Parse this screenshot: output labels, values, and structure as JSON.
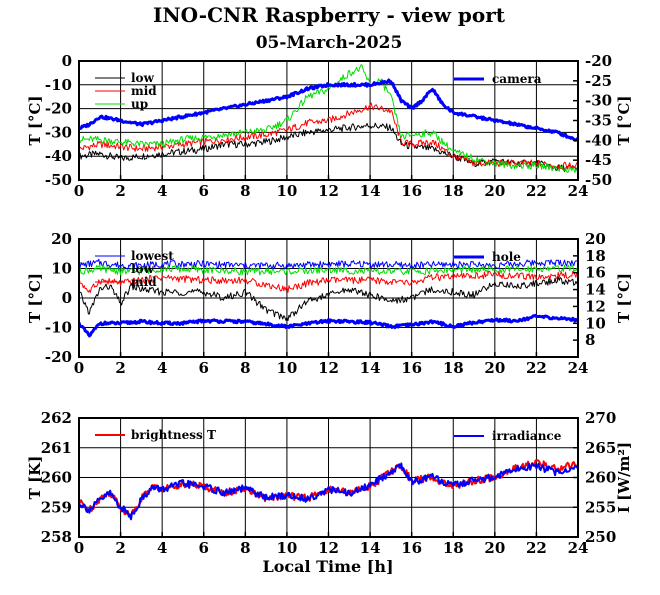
{
  "title": "INO-CNR Raspberry - view port",
  "subtitle": "05-March-2025",
  "xlabel": "Local Time [h]",
  "chart_data": [
    {
      "type": "line",
      "panel": "view-port-temperatures",
      "xlim": [
        0,
        24
      ],
      "ylim_left": [
        -50,
        0
      ],
      "ylim_right": [
        -50,
        -20
      ],
      "ylabel_left": "T [°C]",
      "ylabel_right": "T [°C]",
      "x_ticks": [
        "0",
        "2",
        "4",
        "6",
        "8",
        "10",
        "12",
        "14",
        "16",
        "18",
        "20",
        "22",
        "24"
      ],
      "y_ticks_left": [
        "-50",
        "-40",
        "-30",
        "-20",
        "-10",
        "0"
      ],
      "y_ticks_right": [
        "-50",
        "-45",
        "-40",
        "-35",
        "-30",
        "-25",
        "-20"
      ],
      "grid": true,
      "legend_left_placement": "top-left",
      "legend_right_placement": "top-right",
      "series": [
        {
          "name": "low",
          "axis": "left",
          "color": "#000000",
          "width": 1,
          "x": [
            0,
            1,
            2,
            3,
            4,
            5,
            6,
            7,
            8,
            9,
            10,
            11,
            12,
            13,
            14,
            15,
            15.5,
            16,
            17,
            18,
            19,
            20,
            21,
            22,
            23,
            24
          ],
          "y": [
            -40,
            -39,
            -41,
            -40,
            -39,
            -38,
            -37,
            -35,
            -35,
            -34,
            -32,
            -30,
            -29,
            -28,
            -27,
            -28,
            -35,
            -36,
            -37,
            -40,
            -43,
            -42,
            -43,
            -43,
            -45,
            -45
          ]
        },
        {
          "name": "mid",
          "axis": "left",
          "color": "#ff0000",
          "width": 1,
          "x": [
            0,
            1,
            2,
            3,
            4,
            5,
            6,
            7,
            8,
            9,
            10,
            11,
            12,
            13,
            14,
            15,
            15.5,
            16,
            17,
            18,
            19,
            20,
            21,
            22,
            23,
            24
          ],
          "y": [
            -37,
            -35,
            -36,
            -37,
            -36,
            -35,
            -34,
            -33,
            -32,
            -31,
            -29,
            -26,
            -25,
            -22,
            -19,
            -21,
            -34,
            -35,
            -34,
            -40,
            -43,
            -43,
            -43,
            -43,
            -44,
            -44
          ]
        },
        {
          "name": "up",
          "axis": "left",
          "color": "#00dd00",
          "width": 1,
          "x": [
            0,
            1,
            2,
            3,
            4,
            5,
            6,
            7,
            8,
            9,
            10,
            11,
            12,
            13,
            13.6,
            14,
            14.5,
            15,
            15.5,
            16,
            17,
            18,
            19,
            20,
            21,
            22,
            23,
            24
          ],
          "y": [
            -33,
            -33,
            -34,
            -35,
            -35,
            -33,
            -32,
            -31,
            -30,
            -29,
            -25,
            -15,
            -12,
            -5,
            -3,
            -10,
            -8,
            -15,
            -32,
            -31,
            -30,
            -38,
            -41,
            -43,
            -44,
            -44,
            -45,
            -46
          ]
        },
        {
          "name": "camera",
          "axis": "right",
          "color": "#0000ff",
          "width": 3,
          "x": [
            0,
            0.5,
            1,
            2,
            3,
            4,
            5,
            6,
            7,
            8,
            9,
            10,
            11,
            12,
            13,
            14,
            15,
            15.5,
            16,
            16.5,
            17,
            17.5,
            18,
            19,
            20,
            21,
            22,
            23,
            24
          ],
          "y": [
            -37,
            -36,
            -34,
            -35,
            -36,
            -35,
            -34,
            -33,
            -32,
            -31,
            -30,
            -29,
            -27,
            -26,
            -26,
            -26,
            -25,
            -30,
            -32,
            -30,
            -27,
            -31,
            -33,
            -34,
            -35,
            -36,
            -37,
            -38,
            -40
          ]
        }
      ]
    },
    {
      "type": "line",
      "panel": "tank-temperatures",
      "xlim": [
        0,
        24
      ],
      "ylim_left": [
        -20,
        20
      ],
      "ylim_right": [
        6,
        20
      ],
      "ylabel_left": "T [°C]",
      "ylabel_right": "T [°C]",
      "x_ticks": [
        "0",
        "2",
        "4",
        "6",
        "8",
        "10",
        "12",
        "14",
        "16",
        "18",
        "20",
        "22",
        "24"
      ],
      "y_ticks_left": [
        "-20",
        "-10",
        "0",
        "10",
        "20"
      ],
      "y_ticks_right": [
        "8",
        "10",
        "12",
        "14",
        "16",
        "18",
        "20"
      ],
      "grid": true,
      "legend_left_placement": "top-left",
      "legend_right_placement": "top-right",
      "series": [
        {
          "name": "lowest",
          "axis": "left",
          "color": "#0000ff",
          "width": 1,
          "x": [
            0,
            1,
            2,
            3,
            4,
            6,
            8,
            10,
            12,
            14,
            16,
            18,
            20,
            22,
            24
          ],
          "y": [
            11,
            12,
            11,
            11,
            11.5,
            11.5,
            11,
            11,
            11.5,
            11.5,
            11,
            11.5,
            11,
            12,
            12
          ]
        },
        {
          "name": "low",
          "axis": "left",
          "color": "#00dd00",
          "width": 1,
          "x": [
            0,
            1,
            2,
            3,
            4,
            6,
            8,
            10,
            12,
            14,
            16,
            18,
            20,
            22,
            24
          ],
          "y": [
            9,
            10,
            9,
            9,
            10,
            9.5,
            9,
            9,
            9.5,
            9,
            9,
            9.5,
            9.5,
            10,
            10
          ]
        },
        {
          "name": "mid",
          "axis": "left",
          "color": "#ff0000",
          "width": 1,
          "x": [
            0,
            0.5,
            1,
            2,
            3,
            4,
            6,
            8,
            10,
            11,
            12,
            14,
            16,
            17,
            18,
            20,
            22,
            24
          ],
          "y": [
            6,
            2,
            6,
            5,
            6,
            7,
            6,
            6,
            3,
            5,
            6,
            6,
            5,
            7,
            7,
            8,
            7,
            8
          ]
        },
        {
          "name": "",
          "axis": "left",
          "color": "#000000",
          "width": 1,
          "x": [
            0,
            0.5,
            1,
            1.5,
            2,
            2.5,
            3,
            4,
            5,
            6,
            7,
            8,
            9,
            10,
            11,
            12,
            13,
            14,
            15,
            16,
            17,
            18,
            19,
            20,
            21,
            22,
            23,
            24
          ],
          "y": [
            2,
            -5,
            3,
            4,
            -2,
            4,
            3,
            2,
            2,
            2,
            0,
            2,
            -4,
            -7,
            -1,
            1,
            3,
            1,
            -1,
            0,
            3,
            2,
            1,
            5,
            4,
            5,
            6,
            5
          ]
        },
        {
          "name": "hole",
          "axis": "right",
          "color": "#0000ff",
          "width": 3,
          "x": [
            0,
            0.5,
            1,
            2,
            3,
            4,
            5,
            6,
            8,
            10,
            12,
            14,
            15,
            16,
            17,
            18,
            19,
            20,
            21,
            22,
            23,
            24
          ],
          "y": [
            10,
            8.5,
            10,
            10,
            10.2,
            10,
            10,
            10.3,
            10.2,
            9.6,
            10.3,
            10.1,
            9.6,
            9.8,
            10.2,
            9.6,
            10.1,
            10.4,
            10.3,
            10.8,
            10.6,
            10.4
          ]
        }
      ]
    },
    {
      "type": "line",
      "panel": "brightness",
      "xlim": [
        0,
        24
      ],
      "ylim_left": [
        258,
        262
      ],
      "ylim_right": [
        250,
        270
      ],
      "ylabel_left": "T [K]",
      "ylabel_right": "I [W/m²]",
      "x_ticks": [
        "0",
        "2",
        "4",
        "6",
        "8",
        "10",
        "12",
        "14",
        "16",
        "18",
        "20",
        "22",
        "24"
      ],
      "y_ticks_left": [
        "258",
        "259",
        "260",
        "261",
        "262"
      ],
      "y_ticks_right": [
        "250",
        "255",
        "260",
        "265",
        "270"
      ],
      "grid": true,
      "legend_left_placement": "top-left",
      "legend_right_placement": "top-right",
      "series": [
        {
          "name": "brightness T",
          "axis": "left",
          "color": "#ff0000",
          "width": 2,
          "x": [
            0,
            0.5,
            1,
            1.5,
            2,
            2.5,
            3,
            3.5,
            4,
            5,
            6,
            7,
            8,
            9,
            10,
            11,
            12,
            13,
            14,
            15,
            15.5,
            16,
            17,
            18,
            19,
            20,
            21,
            22,
            23,
            24
          ],
          "y": [
            259.2,
            258.9,
            259.3,
            259.5,
            259.0,
            258.7,
            259.3,
            259.7,
            259.6,
            259.8,
            259.7,
            259.5,
            259.6,
            259.3,
            259.4,
            259.3,
            259.6,
            259.5,
            259.7,
            260.2,
            260.4,
            259.9,
            260.0,
            259.7,
            259.9,
            260.0,
            260.3,
            260.5,
            260.3,
            260.5
          ]
        },
        {
          "name": "irradiance",
          "axis": "right",
          "color": "#0000ff",
          "width": 2,
          "x": [
            0,
            0.5,
            1,
            1.5,
            2,
            2.5,
            3,
            3.5,
            4,
            5,
            6,
            7,
            8,
            9,
            10,
            11,
            12,
            13,
            14,
            15,
            15.5,
            16,
            17,
            18,
            19,
            20,
            21,
            22,
            23,
            24
          ],
          "y": [
            255.8,
            254.5,
            256.2,
            257.4,
            255.0,
            253.5,
            256.3,
            258.3,
            258.0,
            259.0,
            258.5,
            257.4,
            258.2,
            256.6,
            257.0,
            256.4,
            258.0,
            257.3,
            258.6,
            261.0,
            262.0,
            259.3,
            260.0,
            258.6,
            259.6,
            260.0,
            261.4,
            262.0,
            260.8,
            261.8
          ]
        }
      ]
    }
  ]
}
